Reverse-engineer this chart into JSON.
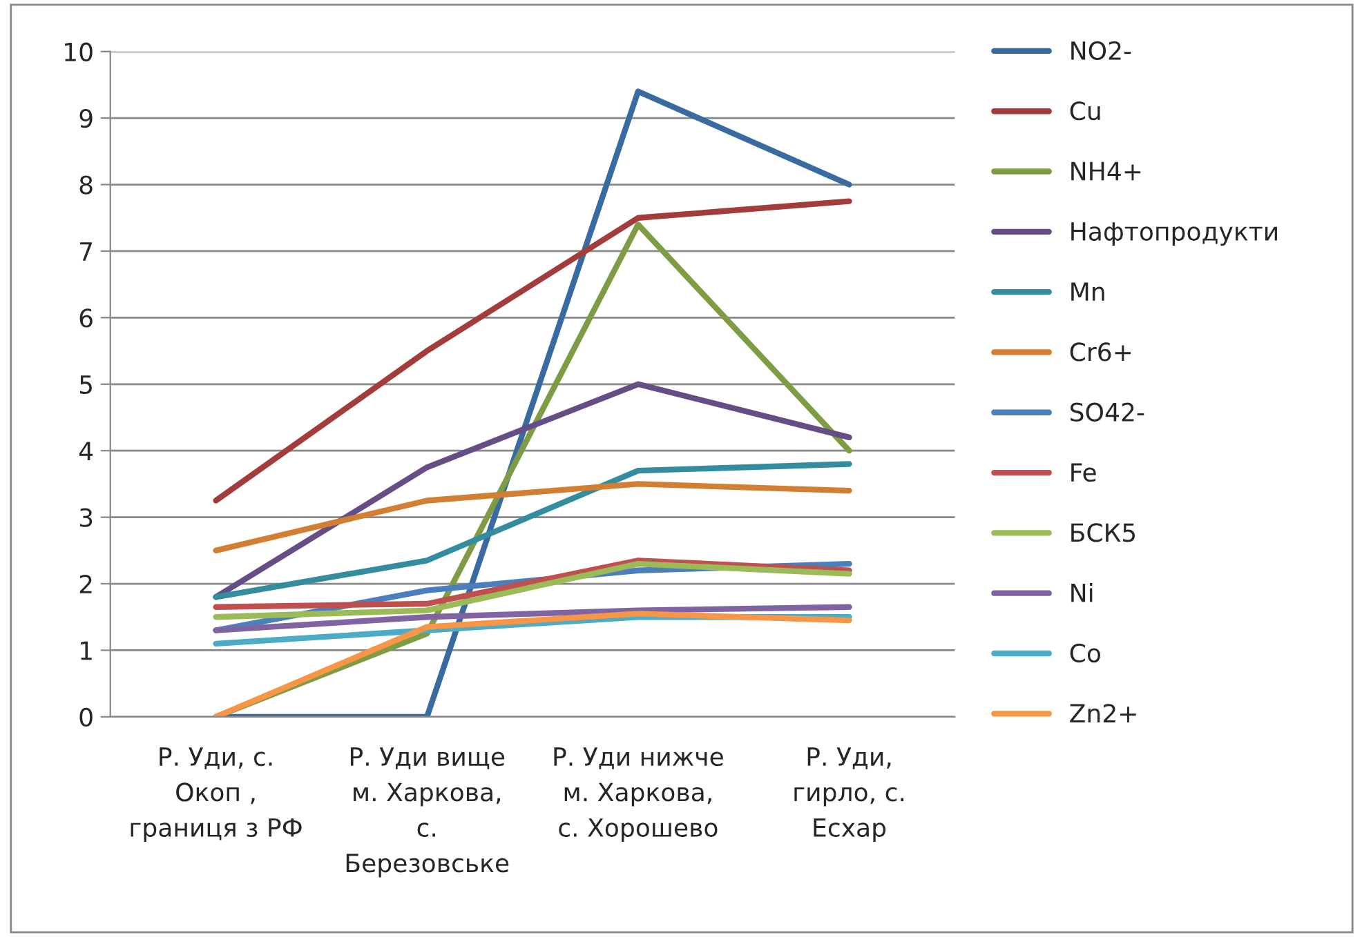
{
  "chart_data": {
    "type": "line",
    "categories": [
      "Р. Уди, с. Окоп , границя з РФ",
      "Р. Уди вище м. Харкова, с. Березовське",
      "Р. Уди нижче м. Харкова, с. Хорошево",
      "Р. Уди, гирло, с. Есхар"
    ],
    "series": [
      {
        "name": "NO2-",
        "color": "#386ba0",
        "values": [
          0,
          0,
          9.4,
          8.0
        ]
      },
      {
        "name": "Cu",
        "color": "#a33d3b",
        "values": [
          3.25,
          5.5,
          7.5,
          7.75
        ]
      },
      {
        "name": "NH4+",
        "color": "#7f9c45",
        "values": [
          0,
          1.25,
          7.4,
          4.0
        ]
      },
      {
        "name": "Нафтопродукти",
        "color": "#664d85",
        "values": [
          1.8,
          3.75,
          5.0,
          4.2
        ]
      },
      {
        "name": "Mn",
        "color": "#338d9e",
        "values": [
          1.8,
          2.35,
          3.7,
          3.8
        ]
      },
      {
        "name": "Cr6+",
        "color": "#d37f33",
        "values": [
          2.5,
          3.25,
          3.5,
          3.4
        ]
      },
      {
        "name": "SO42-",
        "color": "#4a7ebd",
        "values": [
          1.3,
          1.9,
          2.2,
          2.3
        ]
      },
      {
        "name": "Fe",
        "color": "#c0504d",
        "values": [
          1.65,
          1.7,
          2.35,
          2.2
        ]
      },
      {
        "name": "БСК5",
        "color": "#9bbb59",
        "values": [
          1.5,
          1.6,
          2.3,
          2.15
        ]
      },
      {
        "name": "Ni",
        "color": "#8064a2",
        "values": [
          1.3,
          1.5,
          1.6,
          1.65
        ]
      },
      {
        "name": "Co",
        "color": "#4bacc6",
        "values": [
          1.1,
          1.3,
          1.5,
          1.5
        ]
      },
      {
        "name": "Zn2+",
        "color": "#f79646",
        "values": [
          0,
          1.35,
          1.55,
          1.45
        ]
      }
    ],
    "ylim": [
      0,
      10
    ],
    "yticks": [
      0,
      1,
      2,
      3,
      4,
      5,
      6,
      7,
      8,
      9,
      10
    ],
    "grid": "y",
    "legend": "right",
    "marker": "none",
    "line_style": "solid"
  }
}
